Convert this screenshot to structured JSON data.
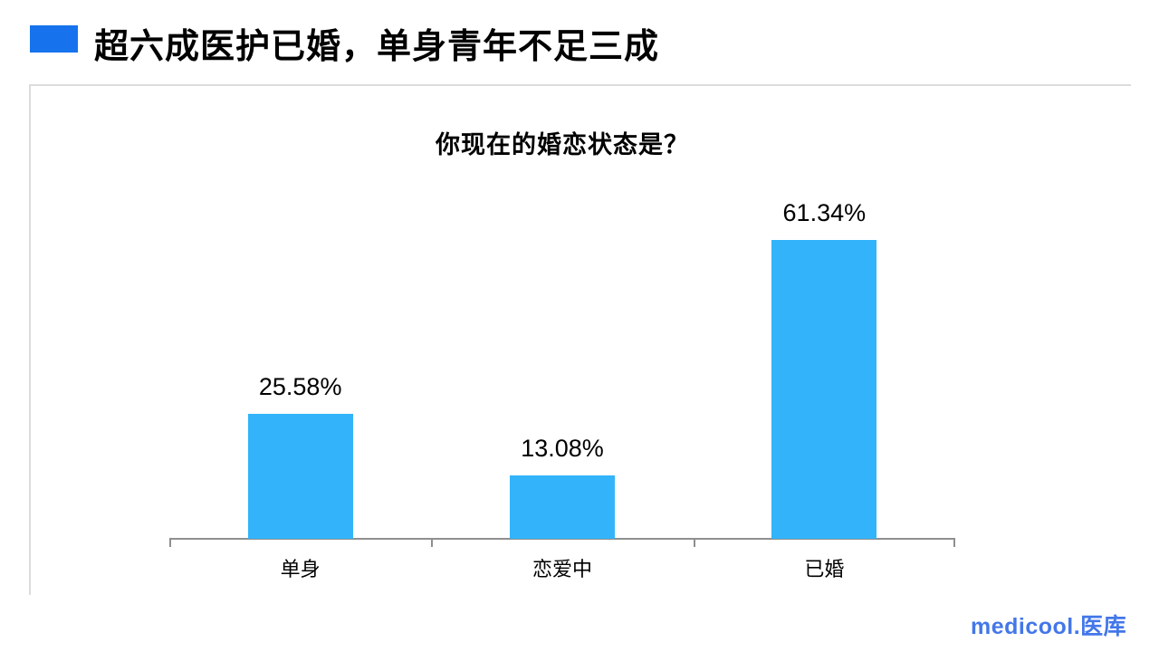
{
  "header": {
    "marker_color": "#1673ED",
    "title": "超六成医护已婚，单身青年不足三成"
  },
  "chart_data": {
    "type": "bar",
    "title": "你现在的婚恋状态是？",
    "categories": [
      "单身",
      "恋爱中",
      "已婚"
    ],
    "values": [
      25.58,
      13.08,
      61.34
    ],
    "value_labels": [
      "25.58%",
      "13.08%",
      "61.34%"
    ],
    "unit": "%",
    "bar_color": "#33B4FA",
    "axis_color": "#8F8F8F",
    "xlabel": "",
    "ylabel": "",
    "ylim": [
      0,
      70
    ],
    "grid": false,
    "legend": "none",
    "data_labels": "above-bars",
    "y_axis_visible": false
  },
  "footer": {
    "logo_text": "medicool.医库",
    "logo_color": "#4377E9"
  }
}
